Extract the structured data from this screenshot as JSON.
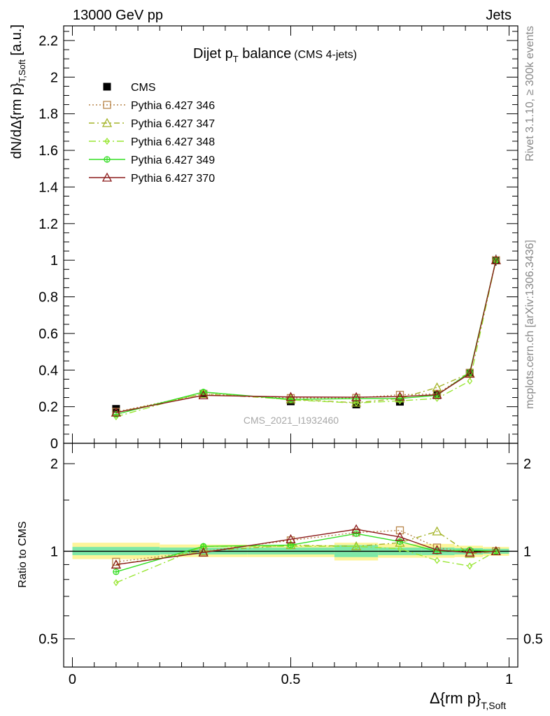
{
  "header": {
    "left": "13000 GeV pp",
    "right": "Jets"
  },
  "side_labels": {
    "rivet": "Rivet 3.1.10, ≥ 300k events",
    "mcplots": "mcplots.cern.ch [arXiv:1306.3436]"
  },
  "plot_title": {
    "main": "Dijet p",
    "sub": "T",
    "rest": " balance",
    "small": "(CMS 4-jets)"
  },
  "watermark": "CMS_2021_I1932460",
  "colors": {
    "CMS": "#000000",
    "p346": "#b8864b",
    "p347": "#a4b428",
    "p348": "#99e633",
    "p349": "#33dd22",
    "p370": "#8b1a1a",
    "band_inner": "#7ee8a8",
    "band_outer": "#fdf59a"
  },
  "chart_data": [
    {
      "type": "line",
      "panel": "main",
      "ylabel": "dN/dΔ{rm p}",
      "ylabel_sub": "T,Soft",
      "ylabel_unit": " [a.u.]",
      "xlim": [
        -0.02,
        1.02
      ],
      "ylim": [
        0,
        2.28
      ],
      "yticks": [
        0,
        0.2,
        0.4,
        0.6,
        0.8,
        1,
        1.2,
        1.4,
        1.6,
        1.8,
        2,
        2.2
      ],
      "ytick_labels": [
        "0",
        "0.2",
        "0.4",
        "0.6",
        "0.8",
        "1",
        "1.2",
        "1.4",
        "1.6",
        "1.8",
        "2",
        "2.2"
      ],
      "x": [
        0.1,
        0.3,
        0.5,
        0.65,
        0.75,
        0.835,
        0.91,
        0.97
      ],
      "series": [
        {
          "name": "CMS",
          "key": "CMS",
          "values": [
            0.188,
            0.27,
            0.229,
            0.212,
            0.227,
            0.263,
            0.385,
            1.0
          ],
          "errors": [
            0.01,
            0.01,
            0.008,
            0.008,
            0.008,
            0.01,
            0.012,
            0.03
          ]
        },
        {
          "name": "Pythia 6.427 346",
          "key": "p346",
          "values": [
            0.172,
            0.27,
            0.247,
            0.248,
            0.265,
            0.27,
            0.385,
            1.0
          ]
        },
        {
          "name": "Pythia 6.427 347",
          "key": "p347",
          "values": [
            0.168,
            0.27,
            0.24,
            0.222,
            0.245,
            0.305,
            0.383,
            1.0
          ]
        },
        {
          "name": "Pythia 6.427 348",
          "key": "p348",
          "values": [
            0.145,
            0.28,
            0.237,
            0.22,
            0.232,
            0.245,
            0.34,
            1.0
          ]
        },
        {
          "name": "Pythia 6.427 349",
          "key": "p349",
          "values": [
            0.158,
            0.28,
            0.24,
            0.244,
            0.245,
            0.262,
            0.388,
            1.0
          ]
        },
        {
          "name": "Pythia 6.427 370",
          "key": "p370",
          "values": [
            0.168,
            0.262,
            0.253,
            0.252,
            0.255,
            0.265,
            0.38,
            1.0
          ]
        }
      ]
    },
    {
      "type": "line",
      "panel": "ratio",
      "ylabel": "Ratio to CMS",
      "xlabel": "Δ{rm p}",
      "xlabel_sub": "T,Soft",
      "xlim": [
        -0.02,
        1.02
      ],
      "ylim": [
        0.5,
        2.0
      ],
      "yscale": "log",
      "yticks": [
        0.5,
        1,
        2
      ],
      "ytick_labels": [
        "0.5",
        "1",
        "2"
      ],
      "xticks": [
        0,
        0.5,
        1
      ],
      "xtick_labels": [
        "0",
        "0.5",
        "1"
      ],
      "x": [
        0.1,
        0.3,
        0.5,
        0.65,
        0.75,
        0.835,
        0.91,
        0.97
      ],
      "bands": [
        {
          "x0": 0.0,
          "x1": 0.2,
          "inner": [
            0.97,
            1.035
          ],
          "outer": [
            0.94,
            1.07
          ]
        },
        {
          "x0": 0.2,
          "x1": 0.4,
          "inner": [
            0.975,
            1.03
          ],
          "outer": [
            0.955,
            1.055
          ]
        },
        {
          "x0": 0.4,
          "x1": 0.6,
          "inner": [
            0.975,
            1.03
          ],
          "outer": [
            0.955,
            1.05
          ]
        },
        {
          "x0": 0.6,
          "x1": 0.7,
          "inner": [
            0.955,
            1.05
          ],
          "outer": [
            0.93,
            1.07
          ]
        },
        {
          "x0": 0.7,
          "x1": 0.8,
          "inner": [
            0.97,
            1.03
          ],
          "outer": [
            0.95,
            1.06
          ]
        },
        {
          "x0": 0.8,
          "x1": 0.875,
          "inner": [
            0.97,
            1.03
          ],
          "outer": [
            0.95,
            1.06
          ]
        },
        {
          "x0": 0.875,
          "x1": 0.94,
          "inner": [
            0.975,
            1.025
          ],
          "outer": [
            0.955,
            1.045
          ]
        },
        {
          "x0": 0.94,
          "x1": 1.0,
          "inner": [
            0.98,
            1.02
          ],
          "outer": [
            0.965,
            1.035
          ]
        }
      ],
      "series": [
        {
          "name": "Pythia 6.427 346",
          "key": "p346",
          "values": [
            0.92,
            1.0,
            1.09,
            1.16,
            1.18,
            1.03,
            0.99,
            1.0
          ]
        },
        {
          "name": "Pythia 6.427 347",
          "key": "p347",
          "values": [
            0.9,
            1.0,
            1.05,
            1.04,
            1.07,
            1.17,
            0.98,
            1.0
          ]
        },
        {
          "name": "Pythia 6.427 348",
          "key": "p348",
          "values": [
            0.78,
            1.04,
            1.04,
            1.04,
            1.02,
            0.93,
            0.89,
            1.0
          ]
        },
        {
          "name": "Pythia 6.427 349",
          "key": "p349",
          "values": [
            0.85,
            1.04,
            1.05,
            1.15,
            1.08,
            1.0,
            1.01,
            1.0
          ]
        },
        {
          "name": "Pythia 6.427 370",
          "key": "p370",
          "values": [
            0.9,
            0.99,
            1.1,
            1.19,
            1.12,
            1.01,
            0.99,
            1.0
          ]
        }
      ]
    }
  ]
}
